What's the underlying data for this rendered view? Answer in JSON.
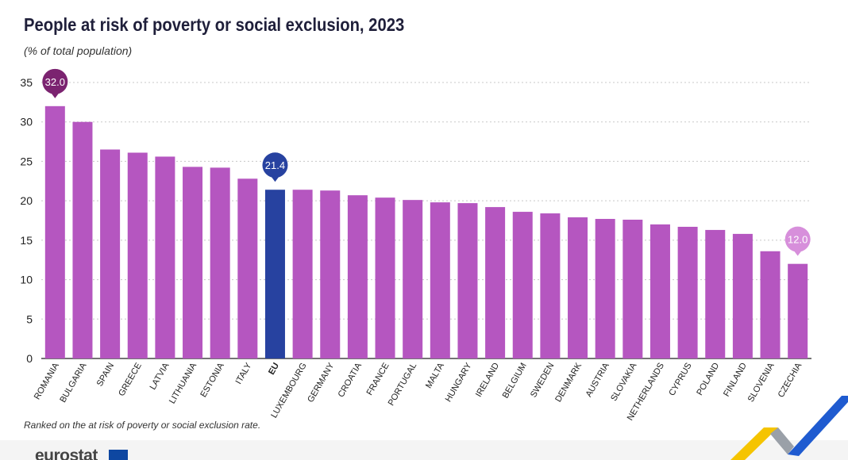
{
  "header": {
    "title": "People at risk of poverty or social exclusion, 2023",
    "subtitle": "(% of total population)"
  },
  "footer": {
    "note": "Ranked on the at risk of poverty or social exclusion rate.",
    "logo_text": "eurostat"
  },
  "colors": {
    "bar_default": "#b556c0",
    "bar_eu": "#2742a0",
    "label_max": "#7b2370",
    "label_eu": "#2742a0",
    "label_min": "#d78fdb",
    "accent_yellow": "#f5c400",
    "accent_blue": "#1f5bd0"
  },
  "chart_data": {
    "type": "bar",
    "title": "People at risk of poverty or social exclusion, 2023",
    "subtitle": "(% of total population)",
    "xlabel": "",
    "ylabel": "",
    "ylim": [
      0,
      35
    ],
    "yticks": [
      0,
      5,
      10,
      15,
      20,
      25,
      30,
      35
    ],
    "grid": true,
    "categories": [
      "ROMANIA",
      "BULGARIA",
      "SPAIN",
      "GREECE",
      "LATVIA",
      "LITHUANIA",
      "ESTONIA",
      "ITALY",
      "EU",
      "LUXEMBOURG",
      "GERMANY",
      "CROATIA",
      "FRANCE",
      "PORTUGAL",
      "MALTA",
      "HUNGARY",
      "IRELAND",
      "BELGIUM",
      "SWEDEN",
      "DENMARK",
      "AUSTRIA",
      "SLOVAKIA",
      "NETHERLANDS",
      "CYPRUS",
      "POLAND",
      "FINLAND",
      "SLOVENIA",
      "CZECHIA"
    ],
    "values": [
      32.0,
      30.0,
      26.5,
      26.1,
      25.6,
      24.3,
      24.2,
      22.8,
      21.4,
      21.4,
      21.3,
      20.7,
      20.4,
      20.1,
      19.8,
      19.7,
      19.2,
      18.6,
      18.4,
      17.9,
      17.7,
      17.6,
      17.0,
      16.7,
      16.3,
      15.8,
      13.6,
      12.0
    ],
    "highlighted": "EU",
    "callouts": [
      {
        "category": "ROMANIA",
        "text": "32.0",
        "kind": "max"
      },
      {
        "category": "EU",
        "text": "21.4",
        "kind": "eu"
      },
      {
        "category": "CZECHIA",
        "text": "12.0",
        "kind": "min"
      }
    ]
  }
}
